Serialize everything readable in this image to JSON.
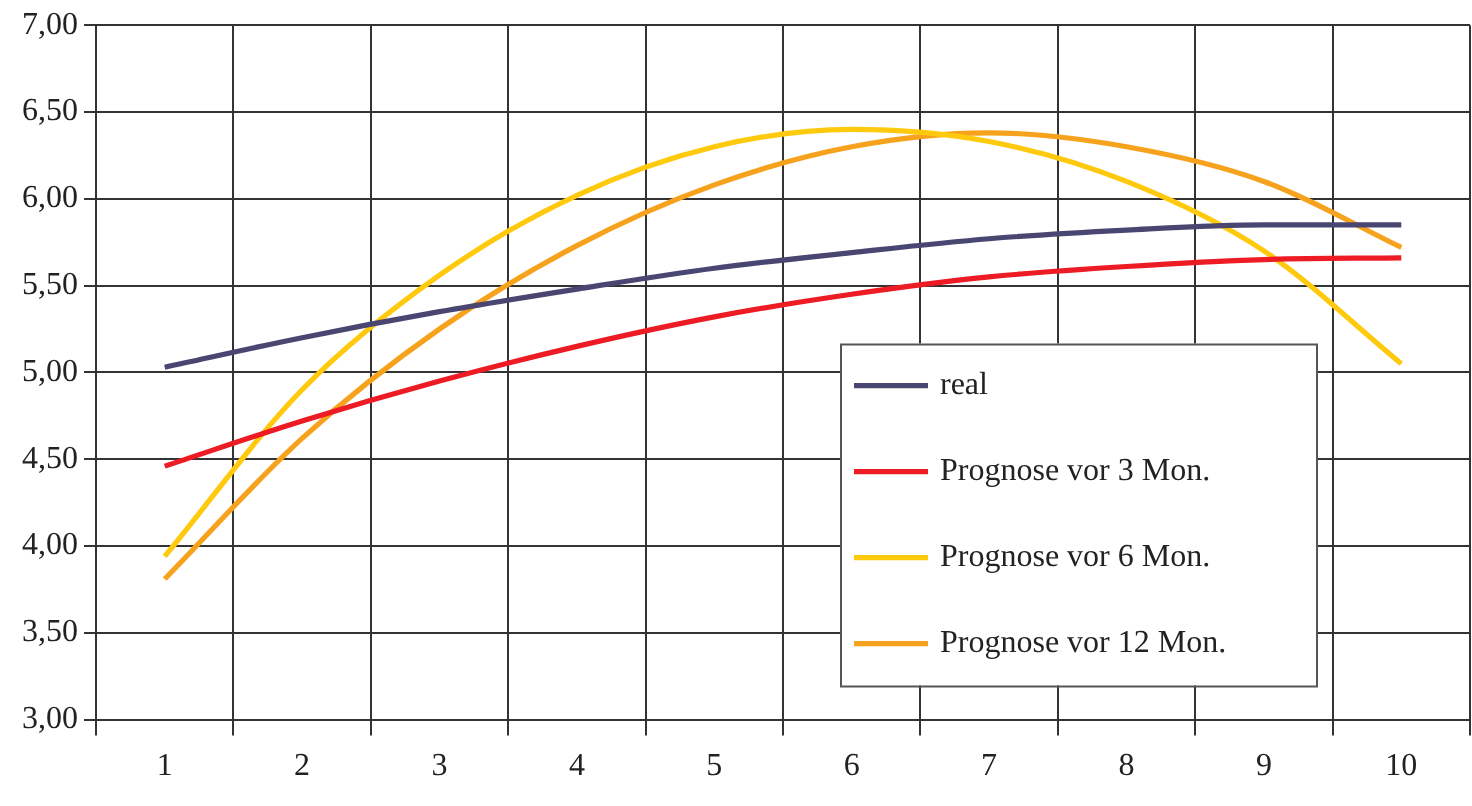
{
  "chart_data": {
    "type": "line",
    "categories": [
      "1",
      "2",
      "3",
      "4",
      "5",
      "6",
      "7",
      "8",
      "9",
      "10"
    ],
    "series": [
      {
        "name": "real",
        "color": "#4a4672",
        "values": [
          5.03,
          5.2,
          5.35,
          5.48,
          5.6,
          5.69,
          5.77,
          5.82,
          5.85,
          5.85
        ]
      },
      {
        "name": "Prognose vor 3 Mon.",
        "color": "#ed1c24",
        "values": [
          4.46,
          4.72,
          4.95,
          5.15,
          5.32,
          5.45,
          5.55,
          5.61,
          5.65,
          5.66
        ]
      },
      {
        "name": "Prognose vor 6 Mon.",
        "color": "#ffc90e",
        "values": [
          3.94,
          4.9,
          5.56,
          6.02,
          6.3,
          6.4,
          6.33,
          6.1,
          5.7,
          5.05
        ]
      },
      {
        "name": "Prognose vor 12 Mon.",
        "color": "#f7a21c",
        "values": [
          3.81,
          4.62,
          5.25,
          5.73,
          6.08,
          6.3,
          6.38,
          6.3,
          6.1,
          5.72
        ]
      }
    ],
    "ylim": [
      3,
      7
    ],
    "yticks": [
      {
        "value": 3,
        "label": "3,00"
      },
      {
        "value": 3.5,
        "label": "3,50"
      },
      {
        "value": 4,
        "label": "4,00"
      },
      {
        "value": 4.5,
        "label": "4,50"
      },
      {
        "value": 5,
        "label": "5,00"
      },
      {
        "value": 5.5,
        "label": "5,50"
      },
      {
        "value": 6,
        "label": "6,00"
      },
      {
        "value": 6.5,
        "label": "6,50"
      },
      {
        "value": 7,
        "label": "7,00"
      }
    ],
    "grid": true,
    "legend": "bottom right",
    "marker": "none",
    "line_style": "solid"
  }
}
